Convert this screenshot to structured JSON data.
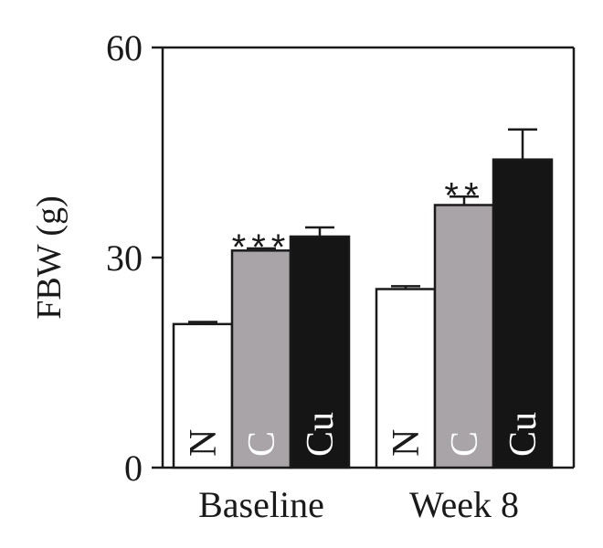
{
  "chart_data": {
    "type": "bar",
    "ylabel": "FBW (g)",
    "ylim": [
      0,
      60
    ],
    "yticks": [
      "0",
      "30",
      "60"
    ],
    "categories": [
      "Baseline",
      "Week 8"
    ],
    "series": [
      {
        "label": "N",
        "color": "#ffffff",
        "label_color": "#1a1a1a",
        "values": [
          20.5,
          25.5
        ],
        "errors": [
          0.3,
          0.4
        ]
      },
      {
        "label": "C",
        "color": "#a8a4a8",
        "label_color": "#ffffff",
        "values": [
          31.0,
          37.5
        ],
        "errors": [
          0.3,
          1.2
        ]
      },
      {
        "label": "Cu",
        "color": "#151515",
        "label_color": "#ffffff",
        "values": [
          33.0,
          44.0
        ],
        "errors": [
          1.3,
          4.3
        ]
      }
    ],
    "significance": [
      {
        "category": "Baseline",
        "series": "C",
        "text": "***"
      },
      {
        "category": "Week 8",
        "series": "C",
        "text": "**"
      }
    ],
    "grid": false
  }
}
